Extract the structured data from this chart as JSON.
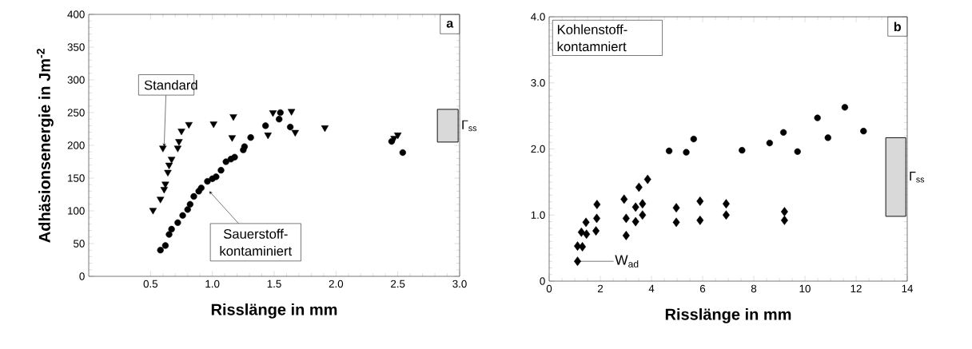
{
  "chart_data": [
    {
      "type": "scatter",
      "xlabel": "Risslänge in mm",
      "ylabel": "Adhäsionsenergie in Jm$^{-2}$",
      "xlim": [
        0,
        3.0
      ],
      "ylim": [
        0,
        400
      ],
      "xticks": [
        {
          "value": 0.5,
          "label": "0.5"
        },
        {
          "value": 1.0,
          "label": "1.0"
        },
        {
          "value": 1.5,
          "label": "1.5"
        },
        {
          "value": 2.0,
          "label": "2.0"
        },
        {
          "value": 2.5,
          "label": "2.5"
        },
        {
          "value": 3.0,
          "label": "3.0"
        }
      ],
      "yticks": [
        0,
        50,
        100,
        150,
        200,
        250,
        300,
        350,
        400
      ],
      "series": [
        {
          "color": "#000000",
          "marker": "triangle",
          "x": [
            0.52,
            0.58,
            0.61,
            0.62,
            0.64,
            0.65,
            0.67,
            0.6,
            0.72,
            0.73,
            0.75,
            0.81,
            1.01,
            1.17,
            1.16,
            1.49,
            1.45,
            1.64,
            1.67,
            1.91,
            2.47,
            2.5
          ],
          "values": [
            101,
            118,
            133,
            141,
            159,
            170,
            179,
            196,
            196,
            206,
            222,
            232,
            233,
            244,
            212,
            250,
            216,
            252,
            220,
            227,
            211,
            216
          ]
        },
        {
          "color": "#000000",
          "marker": "circle",
          "x": [
            0.58,
            0.62,
            0.65,
            0.67,
            0.72,
            0.76,
            0.8,
            0.82,
            0.85,
            0.89,
            0.91,
            0.96,
            1.0,
            1.03,
            1.07,
            1.11,
            1.15,
            1.18,
            1.25,
            1.26,
            1.31,
            1.43,
            1.54,
            1.55,
            1.63,
            2.45,
            2.54
          ],
          "values": [
            40,
            47,
            64,
            72,
            82,
            93,
            102,
            110,
            122,
            130,
            135,
            145,
            149,
            152,
            162,
            175,
            179,
            182,
            193,
            198,
            212,
            230,
            240,
            250,
            228,
            206,
            189
          ]
        }
      ],
      "bands": [
        {
          "axis": "y",
          "from": 205,
          "to": 255,
          "label": "Γ$_{ss}$",
          "color": "#d9d9d9"
        }
      ],
      "annotations": [
        {
          "text": "Standard",
          "x": 0.61,
          "y": 198
        },
        "Sauerstoff-kontaminiert",
        "a"
      ]
    },
    {
      "type": "scatter",
      "xlabel": "Risslänge in mm",
      "xlim": [
        0,
        14
      ],
      "ylim": [
        0,
        4.0
      ],
      "xticks": [
        0,
        2,
        4,
        6,
        8,
        10,
        12,
        14
      ],
      "yticks": [
        0,
        {
          "value": 1.0,
          "label": "1.0"
        },
        {
          "value": 2.0,
          "label": "2.0"
        },
        {
          "value": 3.0,
          "label": "3.0"
        },
        {
          "value": 4.0,
          "label": "4.0"
        }
      ],
      "series": [
        {
          "color": "#000000",
          "marker": "circle",
          "x": [
            4.69,
            5.36,
            5.65,
            7.54,
            8.62,
            9.16,
            9.71,
            10.49,
            10.9,
            11.56,
            12.29
          ],
          "values": [
            1.97,
            1.95,
            2.15,
            1.98,
            2.09,
            2.25,
            1.96,
            2.47,
            2.17,
            2.63,
            2.27
          ]
        },
        {
          "color": "#000000",
          "marker": "diamond",
          "x": [
            1.11,
            1.11,
            1.3,
            1.26,
            1.46,
            1.44,
            1.83,
            1.86,
            1.87,
            2.93,
            3.01,
            3.01,
            3.38,
            3.38,
            3.51,
            3.65,
            3.65,
            3.85,
            4.97,
            4.97,
            5.9,
            5.9,
            6.92,
            6.92,
            9.2,
            9.2
          ],
          "values": [
            0.3,
            0.53,
            0.52,
            0.74,
            0.71,
            0.89,
            0.76,
            0.95,
            1.16,
            1.24,
            0.95,
            0.69,
            0.9,
            1.12,
            1.42,
            1.17,
            1.0,
            1.54,
            1.11,
            0.89,
            1.21,
            0.92,
            1.17,
            1.0,
            1.05,
            0.92
          ]
        }
      ],
      "bands": [
        {
          "axis": "y",
          "from": 0.98,
          "to": 2.17,
          "label": "Γ$_{ss}$",
          "color": "#d9d9d9"
        }
      ],
      "annotations": [
        "Kohlenstoff-kontamniert",
        "W$_{ad}$",
        "b"
      ]
    }
  ]
}
